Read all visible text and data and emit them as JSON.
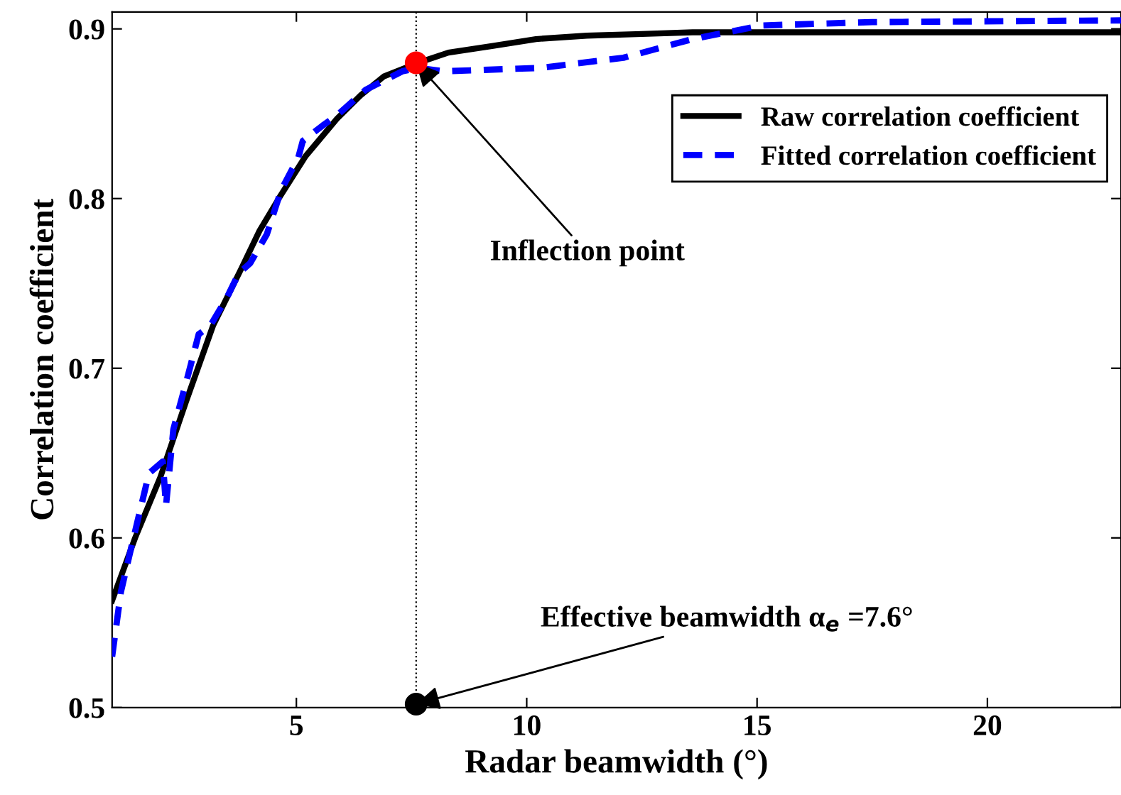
{
  "chart_data": {
    "type": "line",
    "xlabel": "Radar beamwidth (°)",
    "ylabel": "Correlation coefficient",
    "xlim": [
      1,
      22.9
    ],
    "ylim": [
      0.5,
      0.91
    ],
    "xticks": [
      5,
      10,
      15,
      20
    ],
    "yticks": [
      0.5,
      0.6,
      0.7,
      0.8,
      0.9
    ],
    "grid": false,
    "legend": "top right",
    "series": [
      {
        "name": "Raw correlation coefficient",
        "color": "#000000",
        "line_style": "solid",
        "x": [
          1,
          1.5,
          2.05,
          2.6,
          3.19,
          3.81,
          4.2,
          4.64,
          5.2,
          5.88,
          6.4,
          6.9,
          7.64,
          8.3,
          9.27,
          10.2,
          11.3,
          12.5,
          13.6,
          22.9
        ],
        "values": [
          0.563,
          0.6,
          0.636,
          0.68,
          0.725,
          0.759,
          0.781,
          0.801,
          0.825,
          0.847,
          0.861,
          0.872,
          0.88,
          0.886,
          0.89,
          0.894,
          0.896,
          0.897,
          0.898,
          0.898
        ]
      },
      {
        "name": "Fitted correlation coefficient",
        "color": "#0000ff",
        "line_style": "dashed",
        "x": [
          1,
          1.19,
          1.43,
          1.8,
          2.1,
          2.17,
          2.33,
          2.64,
          2.88,
          3.13,
          3.5,
          3.75,
          4.0,
          4.36,
          4.67,
          5.04,
          5.14,
          5.57,
          5.88,
          6.5,
          7.3,
          7.64,
          8.2,
          10.3,
          12.1,
          13.6,
          15.1,
          17.5,
          22.9
        ],
        "values": [
          0.53,
          0.568,
          0.596,
          0.638,
          0.645,
          0.619,
          0.664,
          0.695,
          0.72,
          0.725,
          0.742,
          0.756,
          0.762,
          0.779,
          0.805,
          0.824,
          0.834,
          0.843,
          0.849,
          0.864,
          0.875,
          0.877,
          0.875,
          0.877,
          0.883,
          0.894,
          0.902,
          0.904,
          0.905
        ]
      },
      {
        "type": "scatter",
        "marker": "circle",
        "color": "#ff0000",
        "x": [
          7.6
        ],
        "values": [
          0.88
        ]
      },
      {
        "type": "scatter",
        "marker": "circle",
        "color": "#000000",
        "x": [
          7.6
        ],
        "values": [
          0.502
        ]
      }
    ],
    "ref_lines": [
      {
        "axis": "x",
        "value": 7.6,
        "color": "#000000",
        "line_style": "dotted"
      }
    ],
    "annotations": [
      {
        "text": "Inflection point",
        "x": 7.6,
        "y": 0.88
      },
      {
        "text": "Effective beamwidth α$_{e}$ =7.6°",
        "x": 7.6,
        "y": 0.502
      }
    ]
  }
}
